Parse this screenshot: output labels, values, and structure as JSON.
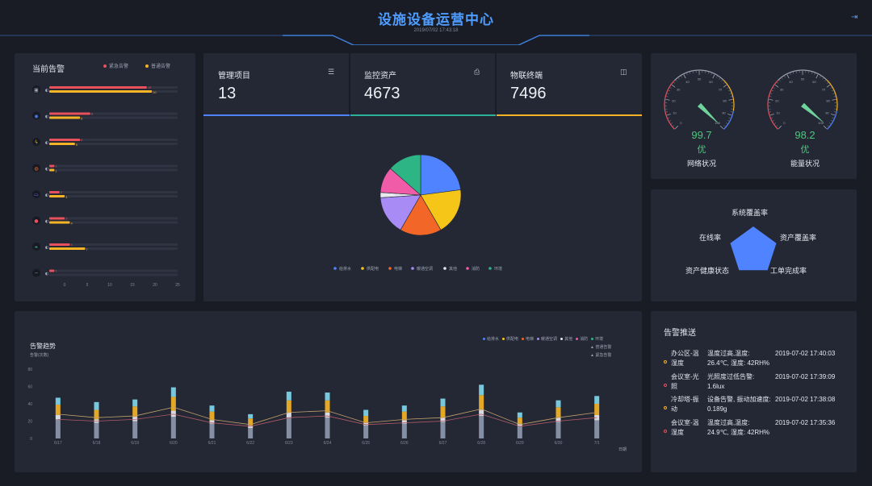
{
  "header": {
    "title": "设施设备运营中心",
    "datetime": "2019/07/02 17:43:18"
  },
  "alarms": {
    "title": "当前告警",
    "legend": [
      {
        "label": "紧急告警",
        "color": "#e8505b"
      },
      {
        "label": "普通告警",
        "color": "#f5b326"
      }
    ],
    "x_ticks": [
      "0",
      "5",
      "10",
      "15",
      "20",
      "25"
    ],
    "rows": [
      {
        "icon": "display-icon",
        "glyph": "▣",
        "urgent": 19,
        "normal": 20
      },
      {
        "icon": "camera-icon",
        "glyph": "◉",
        "urgent": 8,
        "normal": 6
      },
      {
        "icon": "lightning-icon",
        "glyph": "ϟ",
        "urgent": 6,
        "normal": 5
      },
      {
        "icon": "fire-icon",
        "glyph": "◍",
        "urgent": 1,
        "normal": 1
      },
      {
        "icon": "monitor-icon",
        "glyph": "▭",
        "urgent": 2,
        "normal": 3
      },
      {
        "icon": "drop-icon",
        "glyph": "●",
        "urgent": 3,
        "normal": 4
      },
      {
        "icon": "leaf-icon",
        "glyph": "❧",
        "urgent": 4,
        "normal": 7
      },
      {
        "icon": "minus-icon",
        "glyph": "─",
        "urgent": 1,
        "normal": 0
      }
    ]
  },
  "stats": [
    {
      "label": "管理项目",
      "value": "13",
      "icon": "list-icon",
      "glyph": "☰",
      "color": "#4f83ff"
    },
    {
      "label": "监控资产",
      "value": "4673",
      "icon": "printer-icon",
      "glyph": "⎙",
      "color": "#2bb19a"
    },
    {
      "label": "物联终端",
      "value": "7496",
      "icon": "devices-icon",
      "glyph": "◫",
      "color": "#f5b326"
    }
  ],
  "chart_data": [
    {
      "type": "pie",
      "categories": [
        "给排水",
        "供配电",
        "电梯",
        "暖通空调",
        "其他",
        "消防",
        "环境"
      ],
      "values": [
        22,
        18,
        16,
        15,
        2,
        10,
        13
      ],
      "colors": [
        "#4f83ff",
        "#f5c518",
        "#f26727",
        "#a98bf5",
        "#e8e8ef",
        "#f05ca8",
        "#2eb585"
      ],
      "legend": "bottom"
    },
    {
      "type": "bar",
      "title": "告警趋势",
      "ylabel": "告警(次数)",
      "xlabel": "日期",
      "ylim": [
        0,
        80
      ],
      "y_ticks": [
        0,
        20,
        40,
        60,
        80
      ],
      "categories": [
        "6/17",
        "6/18",
        "6/19",
        "6/20",
        "6/21",
        "6/22",
        "6/23",
        "6/24",
        "6/25",
        "6/26",
        "6/27",
        "6/28",
        "6/29",
        "6/30",
        "7/1"
      ],
      "stack_legend": [
        "给排水",
        "供配电",
        "电梯",
        "暖通空调",
        "其他",
        "消防",
        "环境"
      ],
      "line_legend": [
        "普通告警",
        "紧急告警"
      ],
      "series": [
        {
          "name": "给排水",
          "color": "#8e98ad",
          "values": [
            22,
            18,
            20,
            25,
            17,
            12,
            24,
            24,
            15,
            17,
            19,
            26,
            14,
            19,
            21
          ]
        },
        {
          "name": "消防",
          "color": "#e9e9ef",
          "values": [
            5,
            4,
            5,
            7,
            4,
            3,
            6,
            6,
            3,
            4,
            5,
            7,
            3,
            5,
            6
          ]
        },
        {
          "name": "暖通空调",
          "color": "#f5b326",
          "values": [
            12,
            11,
            12,
            16,
            10,
            8,
            14,
            14,
            8,
            10,
            13,
            17,
            7,
            12,
            13
          ]
        },
        {
          "name": "环境",
          "color": "#7fd6ea",
          "values": [
            8,
            9,
            8,
            11,
            7,
            5,
            10,
            9,
            7,
            7,
            9,
            12,
            6,
            8,
            9
          ]
        }
      ],
      "lines": [
        {
          "name": "普通告警",
          "color": "#c3a16b",
          "values": [
            28,
            24,
            26,
            36,
            22,
            16,
            30,
            32,
            18,
            22,
            24,
            34,
            16,
            24,
            30
          ]
        },
        {
          "name": "紧急告警",
          "color": "#b35a66",
          "values": [
            22,
            20,
            22,
            28,
            18,
            14,
            24,
            26,
            16,
            18,
            20,
            28,
            14,
            20,
            24
          ]
        }
      ]
    }
  ],
  "gauges": [
    {
      "value": "99.7",
      "level": "优",
      "name": "网络状况",
      "score": 99.7
    },
    {
      "value": "98.2",
      "level": "优",
      "name": "能量状况",
      "score": 98.2
    }
  ],
  "gauge_ticks": [
    "0",
    "10",
    "20",
    "30",
    "40",
    "50",
    "60",
    "70",
    "80",
    "90",
    "100"
  ],
  "radar": {
    "labels": [
      "系统覆盖率",
      "资产覆盖率",
      "工单完成率",
      "资产健康状态",
      "在线率"
    ],
    "values": [
      0.9,
      0.9,
      0.9,
      0.9,
      0.9
    ],
    "color": "#4f83ff"
  },
  "push": {
    "title": "告警推送",
    "items": [
      {
        "loc": "办公区-温湿度",
        "desc": "温度过高,温度: 26.4℃, 湿度: 42RH%",
        "time": "2019-07-02 17:40:03",
        "color": "#f5b326"
      },
      {
        "loc": "会议室-光照",
        "desc": "光照度过低告警: 1.6lux",
        "time": "2019-07-02 17:39:09",
        "color": "#e8505b"
      },
      {
        "loc": "冷却塔-振动",
        "desc": "设备告警, 振动加速度: 0.189g",
        "time": "2019-07-02 17:38:08",
        "color": "#f5b326"
      },
      {
        "loc": "会议室-温湿度",
        "desc": "温度过高,温度: 24.9℃, 湿度: 42RH%",
        "time": "2019-07-02 17:35:36",
        "color": "#e8505b"
      }
    ]
  }
}
